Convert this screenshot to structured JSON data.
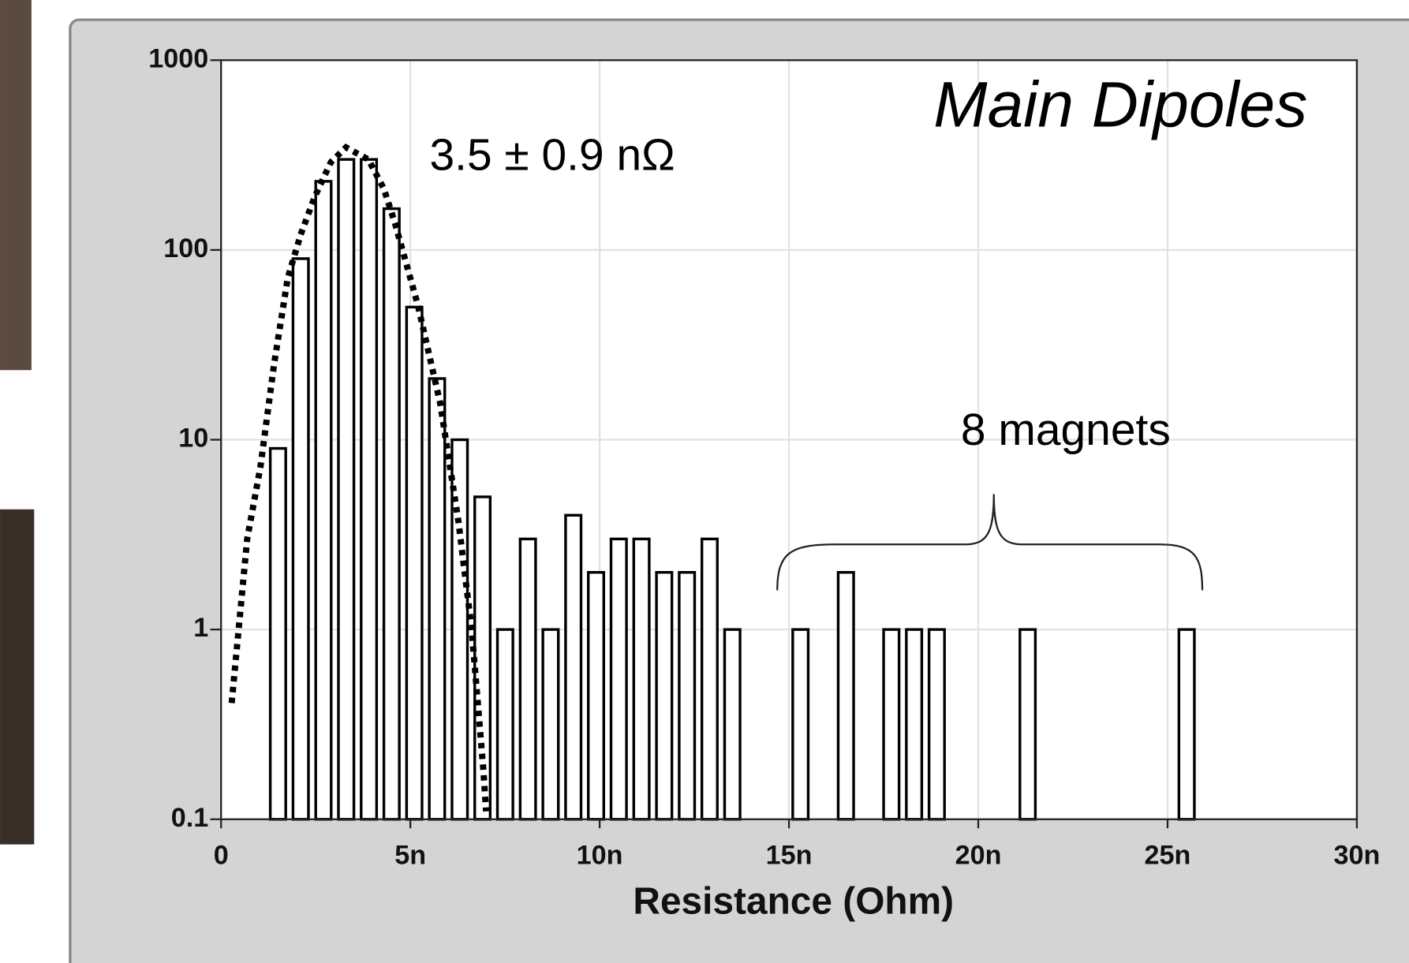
{
  "chart_data": {
    "type": "histogram",
    "title": "Main Dipoles",
    "xlabel": "Resistance (Ohm)",
    "annotations": [
      "3.5 ± 0.9 nΩ",
      "8 magnets"
    ],
    "bins": [
      1.3e-09,
      1.9e-09,
      2.5e-09,
      3.1e-09,
      3.7e-09,
      4.3e-09,
      4.9e-09,
      5.5e-09,
      6.1e-09,
      6.7e-09,
      7.3e-09,
      7.9e-09,
      8.5e-09,
      9.1e-09,
      9.7e-09,
      1.03e-08,
      1.09e-08,
      1.15e-08,
      1.21e-08,
      1.27e-08,
      1.33e-08,
      1.39e-08,
      1.45e-08,
      1.51e-08,
      1.57e-08,
      1.63e-08,
      1.69e-08,
      1.75e-08,
      1.81e-08,
      1.87e-08,
      1.93e-08,
      1.99e-08,
      2.05e-08,
      2.11e-08,
      2.17e-08,
      2.23e-08,
      2.29e-08,
      2.35e-08,
      2.41e-08,
      2.47e-08,
      2.53e-08,
      2.59e-08
    ],
    "values": [
      9,
      90,
      230,
      300,
      300,
      165,
      50,
      21,
      10,
      5,
      1,
      3,
      1,
      4,
      2,
      3,
      3,
      2,
      2,
      3,
      1,
      0,
      0,
      1,
      0,
      2,
      0,
      1,
      1,
      1,
      0,
      0,
      0,
      1,
      0,
      0,
      0,
      0,
      0,
      0,
      1
    ],
    "color": "#ffffff",
    "fit": {
      "x": [
        2.8e-10,
        6.9e-10,
        1.04e-09,
        1.4e-09,
        1.76e-09,
        2.1e-09,
        2.47e-09,
        2.9e-09,
        3.3e-09,
        3.89e-09,
        4.3e-09,
        4.6e-09,
        5.2e-09,
        5.79e-09,
        6.27e-09,
        6.62e-09,
        6.93e-09,
        7e-09
      ],
      "values": [
        0.41,
        3,
        7.2,
        25,
        71,
        120,
        190,
        290,
        347,
        300,
        210,
        137,
        51,
        15.5,
        3.7,
        1.0,
        0.18,
        0.11
      ],
      "color": "#000000"
    },
    "log_y": true,
    "grid": true,
    "xlim": [
      0,
      3e-08
    ],
    "ylim": [
      0.1,
      1000
    ],
    "xticks": [
      0,
      {
        "value": 5e-09,
        "label": "5n"
      },
      {
        "value": 1e-08,
        "label": "10n"
      },
      {
        "value": 1.5e-08,
        "label": "15n"
      },
      {
        "value": 2e-08,
        "label": "20n"
      },
      {
        "value": 2.5e-08,
        "label": "25n"
      },
      {
        "value": 3e-08,
        "label": "30n"
      }
    ],
    "yticks": [
      0.1,
      1,
      10,
      100,
      1000
    ]
  }
}
